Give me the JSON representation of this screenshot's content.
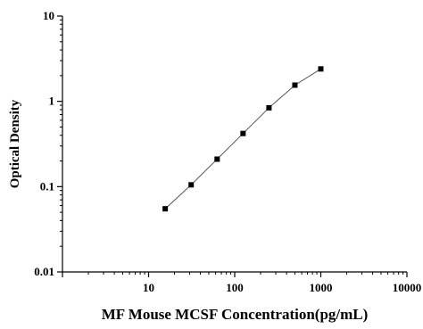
{
  "chart_data": {
    "type": "scatter",
    "title": "",
    "xlabel": "MF Mouse MCSF Concentration(pg/mL)",
    "ylabel": "Optical Density",
    "x_scale": "log",
    "y_scale": "log",
    "xlim": [
      1,
      10000
    ],
    "ylim": [
      0.01,
      10
    ],
    "x_ticks": [
      "10",
      "100",
      "1000",
      "10000"
    ],
    "y_ticks": [
      "0.01",
      "0.1",
      "1",
      "10"
    ],
    "grid": false,
    "legend": "none",
    "fit_line": true,
    "colors": {
      "points": "#000000",
      "line": "#555555"
    },
    "series": [
      {
        "x": [
          15.6,
          31.2,
          62.5,
          125,
          250,
          500,
          1000
        ],
        "y": [
          0.055,
          0.105,
          0.21,
          0.42,
          0.84,
          1.55,
          2.4
        ]
      }
    ]
  }
}
